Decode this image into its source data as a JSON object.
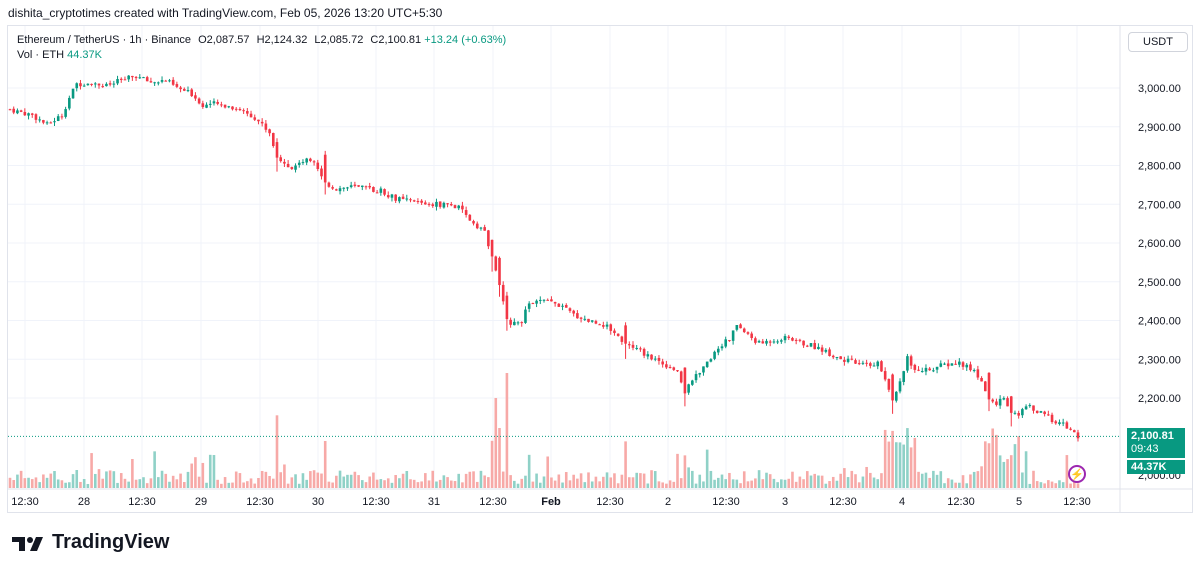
{
  "caption": "dishita_cryptotimes created with TradingView.com, Feb 05, 2026 13:20 UTC+5:30",
  "legend": {
    "symbol": "Ethereum / TetherUS · 1h · Binance",
    "open": "O2,087.57",
    "high": "H2,124.32",
    "low": "L2,085.72",
    "close": "C2,100.81",
    "change": "+13.24 (+0.63%)",
    "vol_label": "Vol · ETH",
    "vol_value": "44.37K"
  },
  "currency": "USDT",
  "last_price": "2,100.81",
  "countdown": "09:43",
  "last_volume": "44.37K",
  "logo_text": "TradingView",
  "colors": {
    "up": "#089981",
    "down": "#f23645",
    "vol_up": "#8fd1c7",
    "vol_down": "#f7a9a7",
    "grid": "#f0f3fa"
  },
  "chart_data": {
    "type": "candlestick",
    "y_ticks": [
      "3,000.00",
      "2,900.00",
      "2,800.00",
      "2,700.00",
      "2,600.00",
      "2,500.00",
      "2,400.00",
      "2,300.00",
      "2,200.00",
      "2,000.00"
    ],
    "x_ticks": [
      "12:30",
      "28",
      "12:30",
      "29",
      "12:30",
      "30",
      "12:30",
      "31",
      "12:30",
      "Feb",
      "12:30",
      "2",
      "12:30",
      "3",
      "12:30",
      "4",
      "12:30",
      "5",
      "12:30"
    ],
    "ylim": [
      1985,
      3100
    ],
    "close_path": [
      [
        0,
        2945
      ],
      [
        6,
        2930
      ],
      [
        10,
        2905
      ],
      [
        14,
        2930
      ],
      [
        16,
        2975
      ],
      [
        18,
        3010
      ],
      [
        22,
        3015
      ],
      [
        26,
        3005
      ],
      [
        30,
        3020
      ],
      [
        34,
        3030
      ],
      [
        38,
        3015
      ],
      [
        42,
        3020
      ],
      [
        45,
        3000
      ],
      [
        49,
        2985
      ],
      [
        52,
        2955
      ],
      [
        54,
        2960
      ],
      [
        58,
        2955
      ],
      [
        62,
        2945
      ],
      [
        66,
        2925
      ],
      [
        70,
        2885
      ],
      [
        72,
        2820
      ],
      [
        74,
        2810
      ],
      [
        76,
        2790
      ],
      [
        78,
        2810
      ],
      [
        82,
        2815
      ],
      [
        85,
        2755
      ],
      [
        88,
        2740
      ],
      [
        92,
        2745
      ],
      [
        96,
        2740
      ],
      [
        100,
        2735
      ],
      [
        104,
        2715
      ],
      [
        106,
        2710
      ],
      [
        110,
        2705
      ],
      [
        114,
        2700
      ],
      [
        118,
        2700
      ],
      [
        121,
        2690
      ],
      [
        124,
        2660
      ],
      [
        128,
        2630
      ],
      [
        130,
        2560
      ],
      [
        132,
        2490
      ],
      [
        134,
        2400
      ],
      [
        136,
        2390
      ],
      [
        138,
        2400
      ],
      [
        140,
        2445
      ],
      [
        144,
        2450
      ],
      [
        148,
        2440
      ],
      [
        152,
        2415
      ],
      [
        156,
        2400
      ],
      [
        160,
        2390
      ],
      [
        163,
        2370
      ],
      [
        166,
        2340
      ],
      [
        170,
        2320
      ],
      [
        174,
        2300
      ],
      [
        178,
        2280
      ],
      [
        180,
        2270
      ],
      [
        182,
        2210
      ],
      [
        184,
        2250
      ],
      [
        186,
        2260
      ],
      [
        188,
        2290
      ],
      [
        190,
        2320
      ],
      [
        192,
        2340
      ],
      [
        194,
        2350
      ],
      [
        196,
        2390
      ],
      [
        198,
        2370
      ],
      [
        202,
        2340
      ],
      [
        206,
        2350
      ],
      [
        210,
        2355
      ],
      [
        214,
        2340
      ],
      [
        218,
        2330
      ],
      [
        222,
        2310
      ],
      [
        226,
        2295
      ],
      [
        230,
        2285
      ],
      [
        234,
        2290
      ],
      [
        236,
        2250
      ],
      [
        238,
        2200
      ],
      [
        240,
        2245
      ],
      [
        242,
        2305
      ],
      [
        244,
        2270
      ],
      [
        248,
        2275
      ],
      [
        252,
        2285
      ],
      [
        256,
        2290
      ],
      [
        260,
        2270
      ],
      [
        262,
        2240
      ],
      [
        264,
        2200
      ],
      [
        266,
        2185
      ],
      [
        268,
        2205
      ],
      [
        270,
        2165
      ],
      [
        272,
        2150
      ],
      [
        274,
        2185
      ],
      [
        276,
        2170
      ],
      [
        278,
        2160
      ],
      [
        280,
        2150
      ],
      [
        284,
        2130
      ],
      [
        286,
        2115
      ],
      [
        288,
        2100
      ]
    ],
    "volume_series": "ETH hourly volume bars (relative height)",
    "last_close": 2100.81
  }
}
